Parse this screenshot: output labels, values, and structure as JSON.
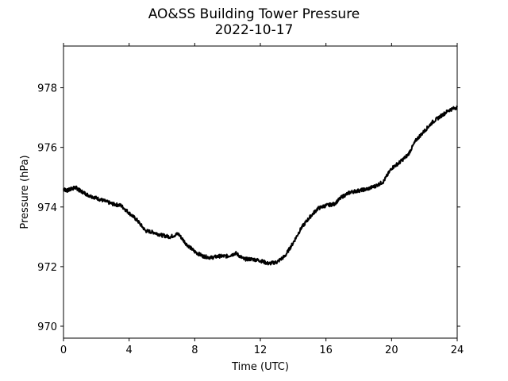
{
  "chart_data": {
    "type": "line",
    "title": "AO&SS Building Tower Pressure",
    "subtitle": "2022-10-17",
    "xlabel": "Time (UTC)",
    "ylabel": "Pressure (hPa)",
    "xlim": [
      0,
      24
    ],
    "ylim": [
      969.6,
      979.4
    ],
    "xticks": [
      0,
      4,
      8,
      12,
      16,
      20,
      24
    ],
    "yticks": [
      970,
      972,
      974,
      976,
      978
    ],
    "grid": false,
    "line_color": "#000000",
    "series": [
      {
        "x": [
          0,
          0.25,
          0.5,
          0.75,
          1.0,
          1.5,
          2.0,
          2.5,
          3.0,
          3.5,
          4.0,
          4.5,
          5.0,
          5.5,
          6.0,
          6.5,
          7.0,
          7.5,
          8.0,
          8.5,
          9.0,
          9.5,
          10.0,
          10.5,
          11.0,
          11.5,
          12.0,
          12.5,
          13.0,
          13.5,
          14.0,
          14.5,
          15.0,
          15.5,
          16.0,
          16.5,
          17.0,
          17.5,
          18.0,
          18.5,
          19.0,
          19.5,
          20.0,
          20.5,
          21.0,
          21.5,
          22.0,
          22.5,
          23.0,
          23.5,
          24.0
        ],
        "values": [
          974.6,
          974.55,
          974.62,
          974.65,
          974.55,
          974.4,
          974.3,
          974.2,
          974.1,
          974.05,
          973.8,
          973.55,
          973.2,
          973.15,
          973.05,
          973.0,
          973.1,
          972.75,
          972.5,
          972.35,
          972.3,
          972.35,
          972.35,
          972.45,
          972.25,
          972.25,
          972.2,
          972.1,
          972.15,
          972.35,
          972.8,
          973.3,
          973.65,
          973.95,
          974.05,
          974.1,
          974.35,
          974.5,
          974.55,
          974.6,
          974.7,
          974.85,
          975.3,
          975.5,
          975.75,
          976.25,
          976.55,
          976.85,
          977.05,
          977.25,
          977.35
        ]
      }
    ]
  }
}
